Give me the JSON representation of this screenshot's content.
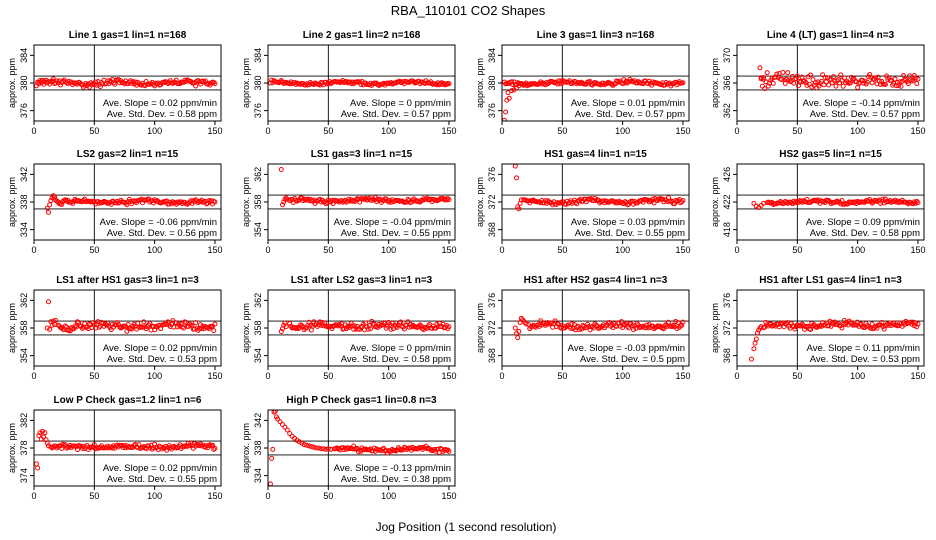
{
  "figure": {
    "title": "RBA_110101  CO2 Shapes",
    "xlabel": "Jog Position (1 second resolution)"
  },
  "chart_data": [
    {
      "type": "scatter",
      "title": "Line 1 gas=1 lin=1 n=168",
      "ylabel": "approx. ppm",
      "xlim": [
        0,
        155
      ],
      "ylim": [
        374.5,
        385.5
      ],
      "xticks": [
        0,
        50,
        100,
        150
      ],
      "yticks": [
        376,
        380,
        384
      ],
      "hlines": [
        381,
        379
      ],
      "vline": 50,
      "x_start": 2,
      "x_end": 150,
      "level": 380,
      "noise": 0.25,
      "transient": [
        [
          4,
          380.1
        ],
        [
          8,
          379.8
        ],
        [
          12,
          380.2
        ],
        [
          16,
          380.6
        ]
      ],
      "slope_text": "Ave. Slope = 0.02  ppm/min",
      "std_text": "Ave. Std. Dev. = 0.58  ppm"
    },
    {
      "type": "scatter",
      "title": "Line 2 gas=1 lin=2 n=168",
      "ylabel": "approx. ppm",
      "xlim": [
        0,
        155
      ],
      "ylim": [
        374.5,
        385.5
      ],
      "xticks": [
        0,
        50,
        100,
        150
      ],
      "yticks": [
        376,
        380,
        384
      ],
      "hlines": [
        381,
        379
      ],
      "vline": 50,
      "x_start": 2,
      "x_end": 150,
      "level": 380,
      "noise": 0.15,
      "transient": [],
      "slope_text": "Ave. Slope = 0  ppm/min",
      "std_text": "Ave. Std. Dev. = 0.57  ppm"
    },
    {
      "type": "scatter",
      "title": "Line 3 gas=1 lin=3 n=168",
      "ylabel": "approx. ppm",
      "xlim": [
        0,
        155
      ],
      "ylim": [
        374.5,
        385.5
      ],
      "xticks": [
        0,
        50,
        100,
        150
      ],
      "yticks": [
        376,
        380,
        384
      ],
      "hlines": [
        381,
        379
      ],
      "vline": 50,
      "x_start": 2,
      "x_end": 150,
      "level": 380,
      "noise": 0.18,
      "transient": [
        [
          2,
          374.6
        ],
        [
          3,
          375.8
        ],
        [
          4,
          377.5
        ],
        [
          5,
          378.6
        ],
        [
          6,
          377.8
        ],
        [
          8,
          378.9
        ],
        [
          10,
          379.0
        ],
        [
          12,
          379.3
        ],
        [
          14,
          379.6
        ],
        [
          17,
          379.8
        ],
        [
          20,
          380.0
        ]
      ],
      "slope_text": "Ave. Slope = 0.01  ppm/min",
      "std_text": "Ave. Std. Dev. = 0.57  ppm"
    },
    {
      "type": "scatter",
      "title": "Line 4 (LT) gas=1 lin=4 n=3",
      "ylabel": "approx. ppm",
      "xlim": [
        0,
        155
      ],
      "ylim": [
        360.5,
        371.5
      ],
      "xticks": [
        0,
        50,
        100,
        150
      ],
      "yticks": [
        362,
        366,
        370
      ],
      "hlines": [
        367,
        365
      ],
      "vline": 50,
      "x_start": 20,
      "x_end": 150,
      "level": 366.4,
      "noise": 0.55,
      "transient": [
        [
          19,
          368.2
        ],
        [
          20,
          366.6
        ],
        [
          22,
          366.8
        ]
      ],
      "slope_text": "Ave. Slope = -0.14  ppm/min",
      "std_text": "Ave. Std. Dev. = 0.57  ppm"
    },
    {
      "type": "scatter",
      "title": "LS2 gas=2 lin=1 n=15",
      "ylabel": "approx. ppm",
      "xlim": [
        0,
        155
      ],
      "ylim": [
        332.5,
        343.5
      ],
      "xticks": [
        0,
        50,
        100,
        150
      ],
      "yticks": [
        334,
        338,
        342
      ],
      "hlines": [
        339,
        337
      ],
      "vline": 50,
      "x_start": 20,
      "x_end": 150,
      "level": 338,
      "noise": 0.2,
      "transient": [
        [
          11,
          337.1
        ],
        [
          12,
          336.5
        ],
        [
          13,
          337.6
        ],
        [
          14,
          338.2
        ],
        [
          15,
          338.6
        ],
        [
          16,
          338.9
        ],
        [
          17,
          338.7
        ],
        [
          18,
          338.3
        ],
        [
          19,
          338.1
        ]
      ],
      "slope_text": "Ave. Slope = -0.06  ppm/min",
      "std_text": "Ave. Std. Dev. = 0.56  ppm"
    },
    {
      "type": "scatter",
      "title": "LS1 gas=3 lin=1 n=15",
      "ylabel": "approx. ppm",
      "xlim": [
        0,
        155
      ],
      "ylim": [
        352.5,
        363.5
      ],
      "xticks": [
        0,
        50,
        100,
        150
      ],
      "yticks": [
        354,
        358,
        362
      ],
      "hlines": [
        359,
        357
      ],
      "vline": 50,
      "x_start": 18,
      "x_end": 150,
      "level": 358.2,
      "noise": 0.2,
      "transient": [
        [
          11,
          362.7
        ],
        [
          12,
          357.6
        ],
        [
          13,
          358.0
        ],
        [
          14,
          358.4
        ],
        [
          15,
          358.6
        ],
        [
          16,
          358.4
        ]
      ],
      "slope_text": "Ave. Slope = -0.04  ppm/min",
      "std_text": "Ave. Std. Dev. = 0.55  ppm"
    },
    {
      "type": "scatter",
      "title": "HS1 gas=4 lin=1 n=15",
      "ylabel": "approx. ppm",
      "xlim": [
        0,
        155
      ],
      "ylim": [
        366.5,
        377.5
      ],
      "xticks": [
        0,
        50,
        100,
        150
      ],
      "yticks": [
        368,
        372,
        376
      ],
      "hlines": [
        373,
        371
      ],
      "vline": 50,
      "x_start": 18,
      "x_end": 150,
      "level": 372.1,
      "noise": 0.2,
      "transient": [
        [
          11,
          377.2
        ],
        [
          12,
          375.5
        ],
        [
          13,
          371.3
        ],
        [
          14,
          371.0
        ],
        [
          15,
          371.8
        ],
        [
          16,
          372.3
        ]
      ],
      "slope_text": "Ave. Slope = 0.03  ppm/min",
      "std_text": "Ave. Std. Dev. = 0.55  ppm"
    },
    {
      "type": "scatter",
      "title": "HS2 gas=5 lin=1 n=15",
      "ylabel": "approx. ppm",
      "xlim": [
        0,
        155
      ],
      "ylim": [
        416.5,
        427.5
      ],
      "xticks": [
        0,
        50,
        100,
        150
      ],
      "yticks": [
        418,
        422,
        426
      ],
      "hlines": [
        423,
        421
      ],
      "vline": 50,
      "x_start": 25,
      "x_end": 150,
      "level": 422,
      "noise": 0.18,
      "transient": [
        [
          14,
          421.8
        ],
        [
          16,
          421.4
        ],
        [
          18,
          421.2
        ],
        [
          20,
          421.5
        ],
        [
          22,
          421.8
        ]
      ],
      "slope_text": "Ave. Slope = 0.09  ppm/min",
      "std_text": "Ave. Std. Dev. = 0.58  ppm"
    },
    {
      "type": "scatter",
      "title": "LS1 after HS1 gas=3 lin=1 n=3",
      "ylabel": "approx. ppm",
      "xlim": [
        0,
        155
      ],
      "ylim": [
        352.5,
        363.5
      ],
      "xticks": [
        0,
        50,
        100,
        150
      ],
      "yticks": [
        354,
        358,
        362
      ],
      "hlines": [
        359,
        357
      ],
      "vline": 50,
      "x_start": 20,
      "x_end": 150,
      "level": 358.3,
      "noise": 0.4,
      "transient": [
        [
          11,
          358.0
        ],
        [
          12,
          361.8
        ],
        [
          13,
          357.8
        ],
        [
          14,
          358.9
        ],
        [
          15,
          358.4
        ],
        [
          16,
          359.0
        ],
        [
          17,
          358.5
        ],
        [
          18,
          359.1
        ]
      ],
      "slope_text": "Ave. Slope = 0.02  ppm/min",
      "std_text": "Ave. Std. Dev. = 0.53  ppm"
    },
    {
      "type": "scatter",
      "title": "LS1 after LS2 gas=3 lin=1 n=3",
      "ylabel": "approx. ppm",
      "xlim": [
        0,
        155
      ],
      "ylim": [
        352.5,
        363.5
      ],
      "xticks": [
        0,
        50,
        100,
        150
      ],
      "yticks": [
        354,
        358,
        362
      ],
      "hlines": [
        359,
        357
      ],
      "vline": 50,
      "x_start": 18,
      "x_end": 150,
      "level": 358.3,
      "noise": 0.35,
      "transient": [
        [
          11,
          357.5
        ],
        [
          12,
          357.9
        ],
        [
          13,
          358.4
        ],
        [
          14,
          358.7
        ],
        [
          15,
          358.2
        ]
      ],
      "slope_text": "Ave. Slope = 0  ppm/min",
      "std_text": "Ave. Std. Dev. = 0.58  ppm"
    },
    {
      "type": "scatter",
      "title": "HS1 after HS2 gas=4 lin=1 n=3",
      "ylabel": "approx. ppm",
      "xlim": [
        0,
        155
      ],
      "ylim": [
        366.5,
        377.5
      ],
      "xticks": [
        0,
        50,
        100,
        150
      ],
      "yticks": [
        368,
        372,
        376
      ],
      "hlines": [
        373,
        371
      ],
      "vline": 50,
      "x_start": 22,
      "x_end": 150,
      "level": 372.3,
      "noise": 0.3,
      "transient": [
        [
          11,
          372.0
        ],
        [
          12,
          371.2
        ],
        [
          13,
          370.6
        ],
        [
          14,
          371.5
        ],
        [
          15,
          372.8
        ],
        [
          16,
          373.4
        ],
        [
          17,
          373.2
        ],
        [
          18,
          373.0
        ],
        [
          19,
          372.8
        ],
        [
          20,
          372.6
        ]
      ],
      "slope_text": "Ave. Slope = -0.03  ppm/min",
      "std_text": "Ave. Std. Dev. = 0.5  ppm"
    },
    {
      "type": "scatter",
      "title": "HS1 after LS1 gas=4 lin=1 n=3",
      "ylabel": "approx. ppm",
      "xlim": [
        0,
        155
      ],
      "ylim": [
        366.5,
        377.5
      ],
      "xticks": [
        0,
        50,
        100,
        150
      ],
      "yticks": [
        368,
        372,
        376
      ],
      "hlines": [
        373,
        371
      ],
      "vline": 50,
      "x_start": 22,
      "x_end": 150,
      "level": 372.4,
      "noise": 0.3,
      "transient": [
        [
          12,
          367.5
        ],
        [
          14,
          369.0
        ],
        [
          15,
          369.8
        ],
        [
          16,
          370.4
        ],
        [
          17,
          371.3
        ],
        [
          18,
          371.7
        ],
        [
          19,
          372.0
        ],
        [
          20,
          372.2
        ]
      ],
      "slope_text": "Ave. Slope = 0.11  ppm/min",
      "std_text": "Ave. Std. Dev. = 0.53  ppm"
    },
    {
      "type": "scatter",
      "title": "Low P Check gas=1.2 lin=1 n=6",
      "ylabel": "approx. ppm",
      "xlim": [
        0,
        155
      ],
      "ylim": [
        372.5,
        383.5
      ],
      "xticks": [
        0,
        50,
        100,
        150
      ],
      "yticks": [
        374,
        378,
        382
      ],
      "hlines": [
        379,
        377
      ],
      "vline": 50,
      "x_start": 14,
      "x_end": 150,
      "level": 378.2,
      "noise": 0.25,
      "transient": [
        [
          2,
          375.7
        ],
        [
          3,
          375.1
        ],
        [
          4,
          379.8
        ],
        [
          5,
          380.2
        ],
        [
          6,
          379.3
        ],
        [
          7,
          380.4
        ],
        [
          8,
          379.6
        ],
        [
          9,
          380.2
        ],
        [
          10,
          379.2
        ],
        [
          11,
          378.7
        ],
        [
          12,
          378.3
        ]
      ],
      "slope_text": "Ave. Slope = 0.02  ppm/min",
      "std_text": "Ave. Std. Dev. = 0.55  ppm"
    },
    {
      "type": "scatter",
      "title": "High P Check gas=1 lin=0.8 n=3",
      "ylabel": "approx. ppm",
      "xlim": [
        0,
        155
      ],
      "ylim": [
        332.5,
        343.5
      ],
      "xticks": [
        0,
        50,
        100,
        150
      ],
      "yticks": [
        334,
        338,
        342
      ],
      "hlines": [
        339,
        337
      ],
      "vline": 50,
      "x_start": 55,
      "x_end": 150,
      "level": 337.8,
      "noise": 0.2,
      "transient": [
        [
          2,
          332.8
        ],
        [
          3,
          336.5
        ],
        [
          4,
          337.8
        ],
        [
          5,
          343.2
        ],
        [
          6,
          343.3
        ],
        [
          7,
          342.5
        ],
        [
          8,
          342.2
        ],
        [
          10,
          341.8
        ],
        [
          12,
          341.4
        ],
        [
          14,
          341.0
        ],
        [
          16,
          340.6
        ],
        [
          18,
          340.1
        ],
        [
          20,
          339.7
        ],
        [
          22,
          339.4
        ],
        [
          24,
          339.1
        ],
        [
          26,
          338.9
        ],
        [
          28,
          338.7
        ],
        [
          30,
          338.5
        ],
        [
          32,
          338.4
        ],
        [
          34,
          338.3
        ],
        [
          36,
          338.2
        ],
        [
          38,
          338.1
        ],
        [
          40,
          338.0
        ],
        [
          42,
          338.0
        ],
        [
          44,
          337.9
        ],
        [
          46,
          337.9
        ],
        [
          48,
          337.8
        ],
        [
          50,
          337.9
        ],
        [
          52,
          337.8
        ]
      ],
      "slope_text": "Ave. Slope = -0.13  ppm/min",
      "std_text": "Ave. Std. Dev. = 0.38  ppm"
    }
  ]
}
